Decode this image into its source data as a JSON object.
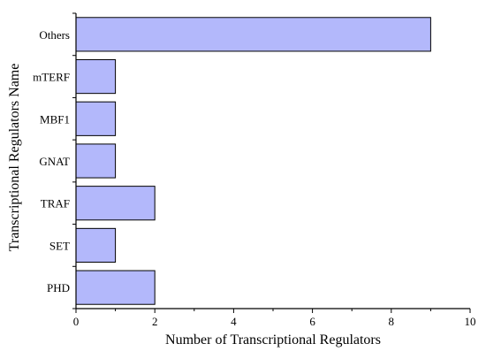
{
  "chart_data": {
    "type": "bar",
    "orientation": "horizontal",
    "categories": [
      "Others",
      "mTERF",
      "MBF1",
      "GNAT",
      "TRAF",
      "SET",
      "PHD"
    ],
    "values": [
      9,
      1,
      1,
      1,
      2,
      1,
      2
    ],
    "xlabel": "Number of Transcriptional Regulators",
    "ylabel": "Transcriptional Regulators Name",
    "xlim": [
      0,
      10
    ],
    "xticks": [
      0,
      2,
      4,
      6,
      8,
      10
    ],
    "grid": false,
    "legend": "none",
    "bar_color": "#b3b8fb",
    "bar_edge_color": "#000000"
  }
}
